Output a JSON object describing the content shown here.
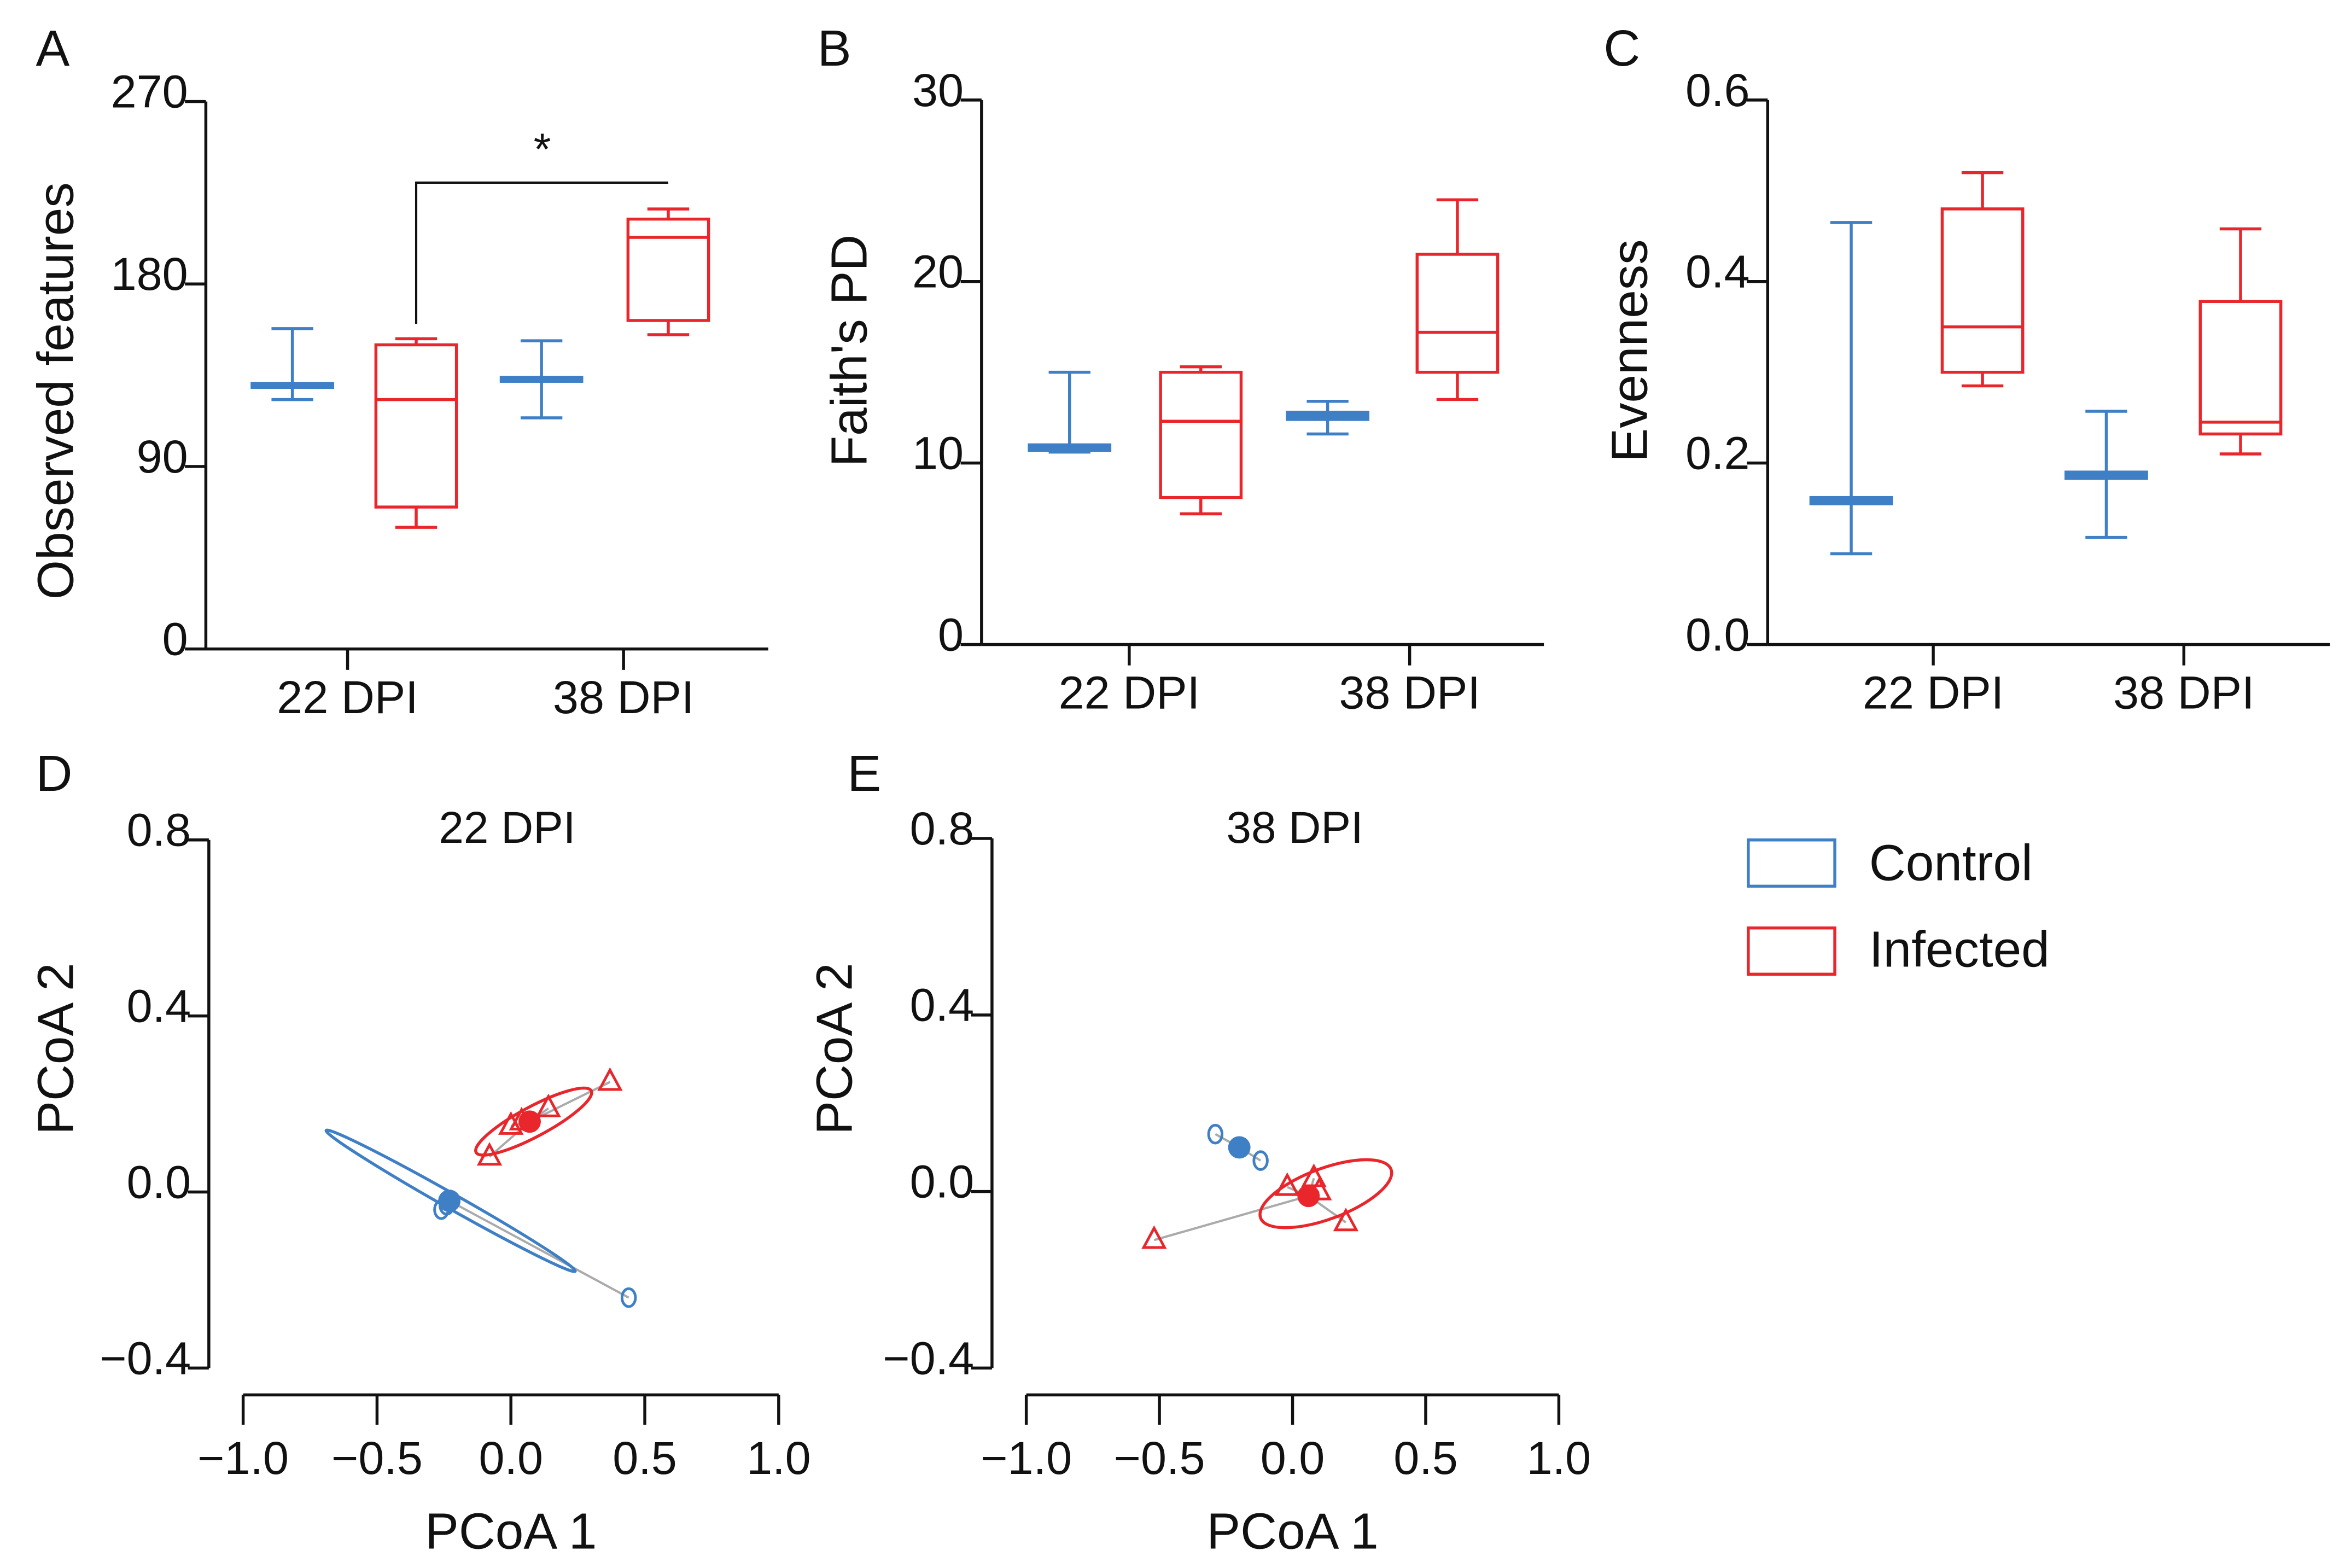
{
  "colors": {
    "control": "#3f7fc6",
    "infected": "#e8262b",
    "spider": "#aaaaaa"
  },
  "legend": {
    "items": [
      {
        "label": "Control",
        "color": "#3f7fc6"
      },
      {
        "label": "Infected",
        "color": "#e8262b"
      }
    ]
  },
  "chart_data": [
    {
      "panel": "A",
      "type": "box",
      "ylabel": "Observed features",
      "ylim": [
        0,
        270
      ],
      "yticks": [
        "0",
        "90",
        "180",
        "270"
      ],
      "ytick_values": [
        0,
        90,
        180,
        270
      ],
      "categories": [
        "22 DPI",
        "38 DPI"
      ],
      "boxes": [
        {
          "category": "22 DPI",
          "group": "Control",
          "min": 123,
          "q1": 129,
          "median": 130,
          "q3": 131,
          "max": 158
        },
        {
          "category": "22 DPI",
          "group": "Infected",
          "min": 60,
          "q1": 70,
          "median": 123,
          "q3": 150,
          "max": 153
        },
        {
          "category": "38 DPI",
          "group": "Control",
          "min": 114,
          "q1": 132,
          "median": 133,
          "q3": 134,
          "max": 152
        },
        {
          "category": "38 DPI",
          "group": "Infected",
          "min": 155,
          "q1": 162,
          "median": 203,
          "q3": 212,
          "max": 217
        }
      ],
      "significance": {
        "from": 1,
        "to": 3,
        "level": 230,
        "label": "*"
      }
    },
    {
      "panel": "B",
      "type": "box",
      "ylabel": "Faith's PD",
      "ylim": [
        0,
        30
      ],
      "yticks": [
        "0",
        "10",
        "20",
        "30"
      ],
      "ytick_values": [
        0,
        10,
        20,
        30
      ],
      "categories": [
        "22 DPI",
        "38 DPI"
      ],
      "boxes": [
        {
          "category": "22 DPI",
          "group": "Control",
          "min": 10.6,
          "q1": 10.7,
          "median": 10.8,
          "q3": 11.0,
          "max": 15.0
        },
        {
          "category": "22 DPI",
          "group": "Infected",
          "min": 7.2,
          "q1": 8.1,
          "median": 12.3,
          "q3": 15.0,
          "max": 15.3
        },
        {
          "category": "38 DPI",
          "group": "Control",
          "min": 11.6,
          "q1": 12.4,
          "median": 12.6,
          "q3": 12.8,
          "max": 13.4
        },
        {
          "category": "38 DPI",
          "group": "Infected",
          "min": 13.5,
          "q1": 15.0,
          "median": 17.2,
          "q3": 21.5,
          "max": 24.5
        }
      ]
    },
    {
      "panel": "C",
      "type": "box",
      "ylabel": "Evenness",
      "ylim": [
        0,
        0.6
      ],
      "yticks": [
        "0.0",
        "0.2",
        "0.4",
        "0.6"
      ],
      "ytick_values": [
        0,
        0.2,
        0.4,
        0.6
      ],
      "categories": [
        "22 DPI",
        "38 DPI"
      ],
      "boxes": [
        {
          "category": "22 DPI",
          "group": "Control",
          "min": 0.1,
          "q1": 0.155,
          "median": 0.158,
          "q3": 0.162,
          "max": 0.465
        },
        {
          "category": "22 DPI",
          "group": "Infected",
          "min": 0.285,
          "q1": 0.3,
          "median": 0.35,
          "q3": 0.48,
          "max": 0.52
        },
        {
          "category": "38 DPI",
          "group": "Control",
          "min": 0.118,
          "q1": 0.183,
          "median": 0.187,
          "q3": 0.19,
          "max": 0.257
        },
        {
          "category": "38 DPI",
          "group": "Infected",
          "min": 0.21,
          "q1": 0.232,
          "median": 0.245,
          "q3": 0.378,
          "max": 0.458
        }
      ]
    },
    {
      "panel": "D",
      "type": "scatter",
      "title": "22 DPI",
      "xlabel": "PCoA 1",
      "ylabel": "PCoA 2",
      "xlim": [
        -1.0,
        1.0
      ],
      "ylim": [
        -0.4,
        0.8
      ],
      "xticks": [
        "−1.0",
        "−0.5",
        "0.0",
        "0.5",
        "1.0"
      ],
      "xtick_values": [
        -1,
        -0.5,
        0,
        0.5,
        1
      ],
      "yticks": [
        "−0.4",
        "0.0",
        "0.4",
        "0.8"
      ],
      "ytick_values": [
        -0.4,
        0,
        0.4,
        0.8
      ],
      "series": [
        {
          "name": "Control",
          "marker": "circle",
          "centroid": [
            -0.23,
            -0.02
          ],
          "points": [
            [
              -0.26,
              -0.04
            ],
            [
              -0.24,
              -0.03
            ],
            [
              0.44,
              -0.24
            ]
          ],
          "ellipse_major_axis": [
            [
              -0.69,
              0.14
            ],
            [
              0.24,
              -0.18
            ]
          ]
        },
        {
          "name": "Infected",
          "marker": "triangle",
          "centroid": [
            0.07,
            0.16
          ],
          "points": [
            [
              -0.08,
              0.08
            ],
            [
              0.0,
              0.15
            ],
            [
              0.04,
              0.16
            ],
            [
              0.14,
              0.19
            ],
            [
              0.37,
              0.25
            ]
          ],
          "ellipse_major_axis": [
            [
              -0.13,
              0.09
            ],
            [
              0.3,
              0.23
            ]
          ]
        }
      ]
    },
    {
      "panel": "E",
      "type": "scatter",
      "title": "38 DPI",
      "xlabel": "PCoA 1",
      "ylabel": "PCoA 2",
      "xlim": [
        -1.0,
        1.0
      ],
      "ylim": [
        -0.4,
        0.8
      ],
      "xticks": [
        "−1.0",
        "−0.5",
        "0.0",
        "0.5",
        "1.0"
      ],
      "xtick_values": [
        -1,
        -0.5,
        0,
        0.5,
        1
      ],
      "yticks": [
        "−0.4",
        "0.0",
        "0.4",
        "0.8"
      ],
      "ytick_values": [
        -0.4,
        0,
        0.4,
        0.8
      ],
      "series": [
        {
          "name": "Control",
          "marker": "circle",
          "centroid": [
            -0.2,
            0.1
          ],
          "points": [
            [
              -0.29,
              0.13
            ],
            [
              -0.12,
              0.07
            ]
          ],
          "ellipse_major_axis": null
        },
        {
          "name": "Infected",
          "marker": "triangle",
          "centroid": [
            0.06,
            -0.01
          ],
          "points": [
            [
              -0.52,
              -0.11
            ],
            [
              -0.02,
              0.01
            ],
            [
              0.08,
              0.03
            ],
            [
              0.1,
              0.0
            ],
            [
              0.2,
              -0.07
            ]
          ],
          "ellipse_major_axis": [
            [
              -0.12,
              -0.06
            ],
            [
              0.37,
              0.05
            ]
          ]
        }
      ]
    }
  ]
}
